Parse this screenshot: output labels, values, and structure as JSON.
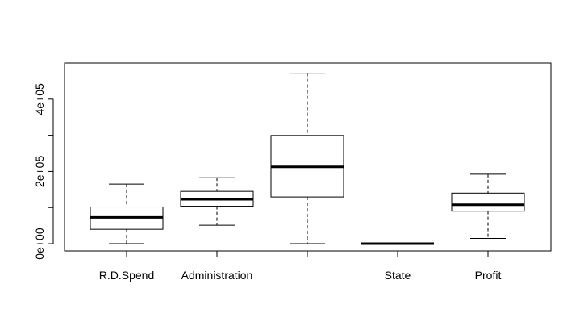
{
  "chart_data": {
    "type": "boxplot",
    "title": "",
    "xlabel": "",
    "ylabel": "",
    "ylim": [
      -20000,
      500000
    ],
    "y_ticks": [
      {
        "value": 0,
        "label": "0e+00"
      },
      {
        "value": 100000,
        "label": ""
      },
      {
        "value": 200000,
        "label": "2e+05"
      },
      {
        "value": 300000,
        "label": ""
      },
      {
        "value": 400000,
        "label": "4e+05"
      }
    ],
    "categories": [
      "R.D.Spend",
      "Administration",
      "",
      "State",
      "Profit"
    ],
    "boxes": [
      {
        "label": "R.D.Spend",
        "min": 0,
        "q1": 39900,
        "median": 73000,
        "q3": 101600,
        "max": 165000
      },
      {
        "label": "Administration",
        "min": 51000,
        "q1": 103700,
        "median": 122700,
        "q3": 144800,
        "max": 182600
      },
      {
        "label": "",
        "min": 0,
        "q1": 129300,
        "median": 212700,
        "q3": 299500,
        "max": 471800
      },
      {
        "label": "State",
        "min": 0,
        "q1": 0,
        "median": 0,
        "q3": 0,
        "max": 0
      },
      {
        "label": "Profit",
        "min": 14700,
        "q1": 90100,
        "median": 107900,
        "q3": 140000,
        "max": 192300
      }
    ],
    "grid": false,
    "legend": "none"
  }
}
